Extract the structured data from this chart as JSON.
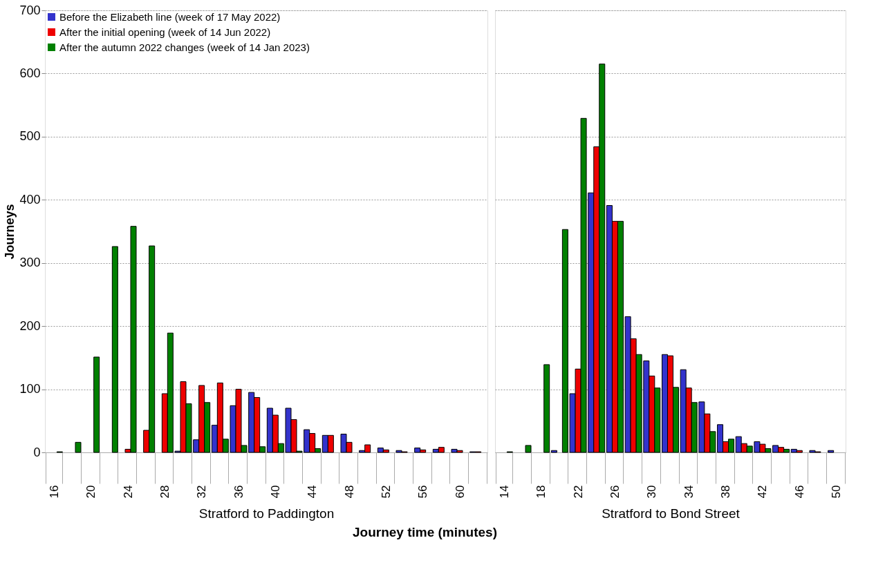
{
  "chart_data": [
    {
      "type": "bar",
      "ylabel": "Journeys",
      "xlabel": "Stratford to Paddington",
      "annotations": [
        "Journey time (minutes)"
      ],
      "ylim": [
        0,
        700
      ],
      "yticks": [
        0,
        100,
        200,
        300,
        400,
        500,
        600,
        700
      ],
      "grid": "y",
      "legend": "top left",
      "categories": [
        "16",
        null,
        "20",
        null,
        "24",
        null,
        "28",
        null,
        "32",
        null,
        "36",
        null,
        "40",
        null,
        "44",
        null,
        "48",
        null,
        "52",
        null,
        "56",
        null,
        "60",
        null
      ],
      "series": [
        {
          "name": "Before the Elizabeth line (week of 17 May 2022)",
          "color": "#3333cc",
          "values": [
            null,
            null,
            null,
            null,
            null,
            null,
            null,
            2,
            20,
            43,
            74,
            95,
            70,
            70,
            36,
            27,
            29,
            3,
            7,
            3,
            7,
            5,
            5,
            1
          ]
        },
        {
          "name": "After the initial opening (week of 14 Jun 2022)",
          "color": "#ee0000",
          "values": [
            null,
            null,
            null,
            null,
            5,
            35,
            93,
            112,
            106,
            110,
            100,
            87,
            59,
            52,
            30,
            27,
            16,
            12,
            4,
            1,
            4,
            8,
            3,
            1
          ]
        },
        {
          "name": "After the autumn 2022 changes (week of 14 Jan 2023)",
          "color": "#008000",
          "values": [
            1,
            16,
            151,
            326,
            358,
            327,
            189,
            77,
            79,
            21,
            11,
            9,
            14,
            2,
            6,
            null,
            null,
            null,
            null,
            null,
            null,
            null,
            null,
            null
          ]
        }
      ]
    },
    {
      "type": "bar",
      "xlabel": "Stratford to Bond Street",
      "ylim": [
        0,
        700
      ],
      "yticks": [
        0,
        100,
        200,
        300,
        400,
        500,
        600,
        700
      ],
      "grid": "y",
      "tick_labels": "x",
      "categories": [
        "14",
        null,
        "18",
        null,
        "22",
        null,
        "26",
        null,
        "30",
        null,
        "34",
        null,
        "38",
        null,
        "42",
        null,
        "46",
        null,
        "50"
      ],
      "series": [
        {
          "color": "#3333cc",
          "values": [
            null,
            null,
            null,
            3,
            93,
            411,
            391,
            215,
            145,
            155,
            131,
            80,
            44,
            25,
            17,
            11,
            5,
            3,
            3
          ]
        },
        {
          "color": "#ee0000",
          "values": [
            null,
            null,
            null,
            null,
            132,
            484,
            366,
            180,
            121,
            153,
            102,
            61,
            17,
            14,
            13,
            8,
            3,
            1,
            null
          ]
        },
        {
          "color": "#008000",
          "values": [
            1,
            11,
            139,
            353,
            529,
            615,
            366,
            155,
            102,
            103,
            79,
            33,
            21,
            10,
            6,
            5,
            null,
            null,
            null
          ]
        }
      ]
    }
  ]
}
